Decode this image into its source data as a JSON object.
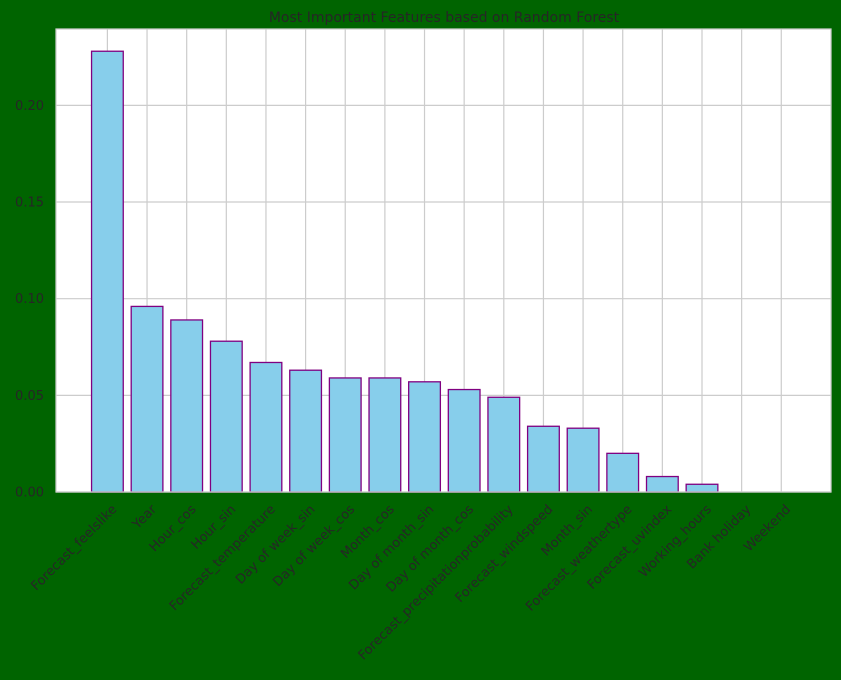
{
  "chart_data": {
    "type": "bar",
    "title": "Most Important Features based on Random Forest",
    "xlabel": "",
    "ylabel": "",
    "categories": [
      "Forecast_feelslike",
      "Year",
      "Hour_cos",
      "Hour_sin",
      "Forecast_temperature",
      "Day of week_sin",
      "Day of week_cos",
      "Month_cos",
      "Day of month_sin",
      "Day of month_cos",
      "Forecast_precipitationprobability",
      "Forecast_windspeed",
      "Month_sin",
      "Forecast_weathertype",
      "Forecast_uvindex",
      "Working_hours",
      "Bank holiday",
      "Weekend"
    ],
    "values": [
      0.228,
      0.096,
      0.089,
      0.078,
      0.067,
      0.063,
      0.059,
      0.059,
      0.057,
      0.053,
      0.049,
      0.034,
      0.033,
      0.02,
      0.008,
      0.004,
      0.0,
      0.0
    ],
    "ylim": [
      0,
      0.2395
    ],
    "yticks": [
      "0.00",
      "0.05",
      "0.10",
      "0.15",
      "0.20"
    ],
    "grid": true,
    "bar_color": "#87ceeb",
    "edge_color": "#800080",
    "background": "#006400",
    "plot_background": "#ffffff",
    "grid_color": "#cccccc"
  }
}
